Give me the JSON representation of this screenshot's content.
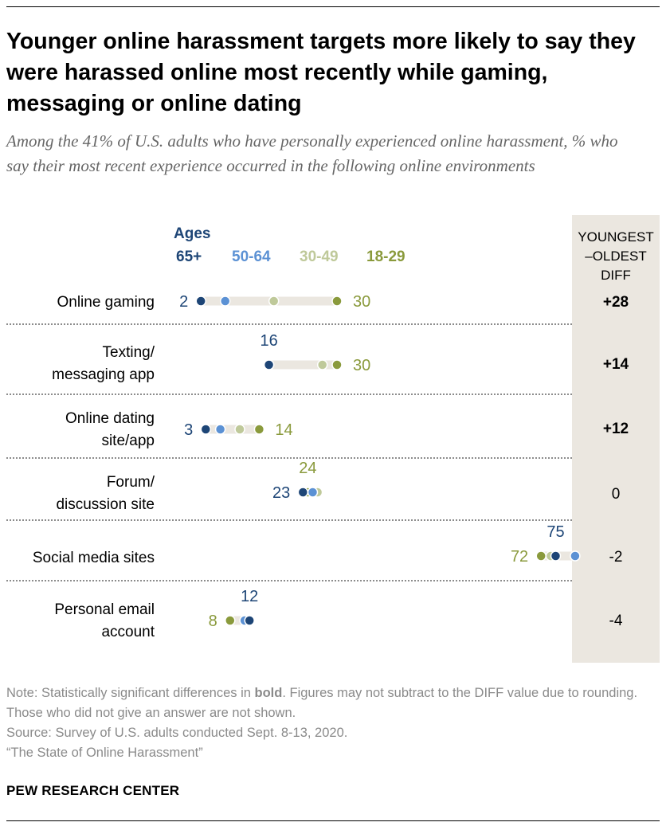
{
  "title": "Younger online harassment targets more likely to say they were harassed online most recently while gaming, messaging or online dating",
  "subtitle": "Among the 41% of U.S. adults who have personally experienced online harassment, % who say their most recent experience occurred in the following online environments",
  "diff_header": [
    "YOUNGEST",
    "–OLDEST",
    "DIFF"
  ],
  "legend": {
    "ages_label": "Ages",
    "items": [
      {
        "label": "65+",
        "color": "#1d4576"
      },
      {
        "label": "50-64",
        "color": "#5b91d4"
      },
      {
        "label": "30-49",
        "color": "#bfc99a"
      },
      {
        "label": "18-29",
        "color": "#8a9a3c"
      }
    ]
  },
  "rows": [
    {
      "label_lines": [
        "Online gaming"
      ],
      "diff": "+28",
      "diff_bold": true
    },
    {
      "label_lines": [
        "Texting/",
        "messaging app"
      ],
      "diff": "+14",
      "diff_bold": true
    },
    {
      "label_lines": [
        "Online dating",
        "site/app"
      ],
      "diff": "+12",
      "diff_bold": true
    },
    {
      "label_lines": [
        "Forum/",
        "discussion site"
      ],
      "diff": "0",
      "diff_bold": false
    },
    {
      "label_lines": [
        "Social media sites"
      ],
      "diff": "-2",
      "diff_bold": false
    },
    {
      "label_lines": [
        "Personal email",
        "account"
      ],
      "diff": "-4",
      "diff_bold": false
    }
  ],
  "notes": {
    "note_prefix": "Note: Statistically significant differences in ",
    "note_bold": "bold",
    "note_rest": ". Figures may not subtract to the DIFF value due to rounding. Those who did not give an answer are not shown.",
    "source": "Source: Survey of U.S. adults conducted Sept. 8-13, 2020.",
    "report": "“The State of Online Harassment”"
  },
  "logo": "PEW RESEARCH CENTER",
  "chart_data": {
    "type": "dot",
    "xlim": [
      0,
      100
    ],
    "categories": [
      "Online gaming",
      "Texting/ messaging app",
      "Online dating site/app",
      "Forum/ discussion site",
      "Social media sites",
      "Personal email account"
    ],
    "series": [
      {
        "name": "65+",
        "color": "#1d4576",
        "values": [
          2,
          16,
          3,
          23,
          75,
          12
        ]
      },
      {
        "name": "50-64",
        "color": "#5b91d4",
        "values": [
          7,
          16,
          6,
          25,
          79,
          11
        ]
      },
      {
        "name": "30-49",
        "color": "#bfc99a",
        "values": [
          17,
          27,
          10,
          26,
          74,
          12
        ]
      },
      {
        "name": "18-29",
        "color": "#8a9a3c",
        "values": [
          30,
          30,
          14,
          24,
          72,
          8
        ]
      }
    ],
    "value_labels": [
      {
        "row": 0,
        "text": "2",
        "series": "65+"
      },
      {
        "row": 0,
        "text": "30",
        "series": "18-29"
      },
      {
        "row": 1,
        "text": "16",
        "series": "65+"
      },
      {
        "row": 1,
        "text": "30",
        "series": "18-29"
      },
      {
        "row": 2,
        "text": "3",
        "series": "65+"
      },
      {
        "row": 2,
        "text": "14",
        "series": "18-29"
      },
      {
        "row": 3,
        "text": "24",
        "series": "18-29"
      },
      {
        "row": 3,
        "text": "23",
        "series": "65+"
      },
      {
        "row": 4,
        "text": "75",
        "series": "65+"
      },
      {
        "row": 4,
        "text": "72",
        "series": "18-29"
      },
      {
        "row": 5,
        "text": "12",
        "series": "65+"
      },
      {
        "row": 5,
        "text": "8",
        "series": "18-29"
      }
    ],
    "diff": [
      "+28",
      "+14",
      "+12",
      "0",
      "-2",
      "-4"
    ]
  }
}
